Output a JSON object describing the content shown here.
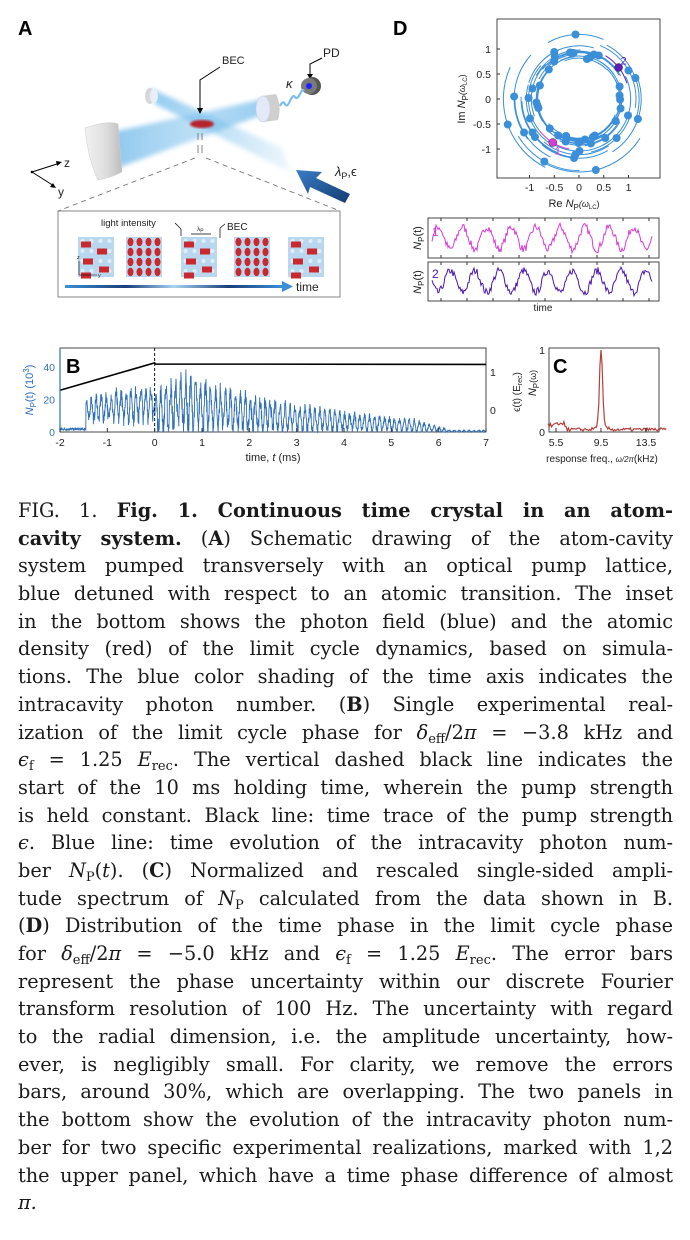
{
  "figure": {
    "panel_labels": {
      "a": "A",
      "b": "B",
      "c": "C",
      "d": "D"
    },
    "panel_a": {
      "bec_label": "BEC",
      "pd_label": "PD",
      "kappa_label": "κ",
      "pump_label": "λ",
      "pump_label_sub": "P",
      "pump_label_suffix": ",ϵ",
      "axis_z": "z",
      "axis_y": "y",
      "inset": {
        "light_intensity_label": "light intensity",
        "lambda_label": "λ",
        "lambda_sub": "P",
        "bec_label": "BEC",
        "axis_z": "z",
        "axis_y": "y",
        "time_label": "time"
      },
      "colors": {
        "beam": "#6fb6e6",
        "bec": "#c0202a",
        "pump_arrow": "#1f5a99",
        "pd_dot": "#2020ff"
      }
    }
  },
  "chart_data": [
    {
      "panel": "B",
      "type": "line",
      "xlabel": "time, t (ms)",
      "ylabel_left": "N_P(t) (10^3)",
      "ylabel_right": "ϵ(t) (E_rec)",
      "xlim": [
        -2,
        7
      ],
      "ylim_left": [
        0,
        50
      ],
      "xticks": [
        "-2",
        "-1",
        "0",
        "1",
        "2",
        "3",
        "4",
        "5",
        "6",
        "7"
      ],
      "yticks_left": [
        "0",
        "20",
        "40"
      ],
      "yticks_right": [
        "0",
        "1"
      ],
      "dashed_vline_x": 0,
      "series": [
        {
          "color": "#2f6fb8",
          "axis": "left",
          "description_points": [
            [
              -2,
              1
            ],
            [
              -1.5,
              1
            ],
            [
              -1.3,
              18
            ],
            [
              -1,
              22
            ],
            [
              0,
              30
            ],
            [
              0.5,
              40
            ],
            [
              1,
              36
            ],
            [
              2,
              28
            ],
            [
              3,
              24
            ],
            [
              4,
              18
            ],
            [
              5,
              12
            ],
            [
              6,
              8
            ],
            [
              7,
              2
            ]
          ]
        },
        {
          "color": "#000000",
          "axis": "right",
          "points": [
            [
              -2,
              0.52
            ],
            [
              0,
              1.24
            ],
            [
              0.01,
              1.21
            ],
            [
              7,
              1.2
            ]
          ]
        }
      ],
      "label_parts": {
        "left_main": "N",
        "left_sub": "P",
        "left_rest": "(t)  (10",
        "left_sup": "3",
        "left_end": ")",
        "right_main": "ϵ(t) (E",
        "right_sub": "rec",
        "right_end": ")",
        "x_main": "time, ",
        "x_it": "t",
        "x_end": " (ms)"
      }
    },
    {
      "panel": "C",
      "type": "line",
      "xlabel": "response freq., ω/2π (kHz)",
      "ylabel": "N_P(ω)",
      "xlim": [
        4.5,
        15
      ],
      "ylim": [
        0,
        1
      ],
      "xticks": [
        "5.5",
        "9.5",
        "13.5"
      ],
      "yticks": [
        "0",
        "1"
      ],
      "peak": {
        "x": 9.5,
        "y": 1.0
      },
      "color": "#b5403a",
      "label_parts": {
        "x_main": "response freq., ",
        "x_om": "ω/2π",
        "x_end": "(kHz)",
        "y_main": "N",
        "y_sub": "P",
        "y_end": "(ω)"
      }
    },
    {
      "panel": "D",
      "type": "scatter",
      "xlabel": "Re N_P(ω_LC)",
      "ylabel": "Im N_P(ω_LC)",
      "xlim": [
        -1.6,
        1.6
      ],
      "ylim": [
        -1.55,
        1.55
      ],
      "xticks": [
        "-1",
        "-0.5",
        "0",
        "0.5",
        "1"
      ],
      "yticks": [
        "1",
        "0.5",
        "0",
        "-0.5",
        "-1"
      ],
      "color": "#3a8fd8",
      "points": [
        [
          -0.07,
          1.29
        ],
        [
          -0.5,
          0.94
        ],
        [
          -0.49,
          0.85
        ],
        [
          -0.5,
          0.75
        ],
        [
          -0.18,
          0.93
        ],
        [
          -0.11,
          0.92
        ],
        [
          0.16,
          0.8
        ],
        [
          0.22,
          0.83
        ],
        [
          0.3,
          0.89
        ],
        [
          0.4,
          0.87
        ],
        [
          -0.61,
          0.59
        ],
        [
          1.0,
          0.57
        ],
        [
          1.14,
          0.42
        ],
        [
          -0.79,
          0.27
        ],
        [
          -0.94,
          0.21
        ],
        [
          -1.31,
          0.05
        ],
        [
          -1.02,
          0.02
        ],
        [
          -0.86,
          -0.07
        ],
        [
          -0.84,
          -0.13
        ],
        [
          -0.82,
          -0.18
        ],
        [
          0.82,
          0.25
        ],
        [
          0.82,
          0.07
        ],
        [
          0.83,
          -0.01
        ],
        [
          0.84,
          -0.19
        ],
        [
          0.99,
          -0.33
        ],
        [
          0.74,
          -0.44
        ],
        [
          1.19,
          -0.4
        ],
        [
          -0.99,
          -0.39
        ],
        [
          -1.44,
          -0.51
        ],
        [
          -0.59,
          -0.59
        ],
        [
          -0.94,
          -0.67
        ],
        [
          -1.11,
          -0.67
        ],
        [
          -0.89,
          -0.76
        ],
        [
          -0.42,
          -0.73
        ],
        [
          -0.27,
          -0.85
        ],
        [
          -0.26,
          -0.74
        ],
        [
          -0.01,
          -0.88
        ],
        [
          0.02,
          -0.85
        ],
        [
          0.12,
          -0.81
        ],
        [
          0.28,
          -0.76
        ],
        [
          0.24,
          -0.89
        ],
        [
          0.32,
          -0.73
        ],
        [
          0.53,
          -0.78
        ],
        [
          0.76,
          -0.78
        ],
        [
          0.01,
          -1.04
        ],
        [
          -0.07,
          -1.11
        ],
        [
          -0.1,
          -1.18
        ],
        [
          -0.7,
          -1.25
        ],
        [
          0.34,
          -1.42
        ]
      ],
      "highlighted": [
        {
          "label": "1",
          "point": [
            -0.53,
            -0.87
          ],
          "color": "#d63cd6"
        },
        {
          "label": "2",
          "point": [
            0.8,
            0.63
          ],
          "color": "#5b1fb8"
        }
      ],
      "label_parts": {
        "x_main": "Re ",
        "x_n": "N",
        "x_sub": "P",
        "x_end": "(ω",
        "x_sub2": "LC",
        "x_close": ")",
        "y_main": "Im ",
        "y_n": "N",
        "y_sub": "P",
        "y_end": "(ω",
        "y_sub2": "LC",
        "y_close": ")"
      }
    },
    {
      "panel": "D-traces",
      "type": "line",
      "xlabel": "time",
      "ylabel": "N_P(t)",
      "series": [
        {
          "name": "1",
          "color": "#d63cd6",
          "periods": 9,
          "phase": 0
        },
        {
          "name": "2",
          "color": "#4a14b0",
          "periods": 9,
          "phase": 3.14
        }
      ],
      "label_parts": {
        "y_main": "N",
        "y_sub": "P",
        "y_end": "(t)"
      }
    }
  ],
  "caption": {
    "lines": [
      [
        [
          "FIG. 1. ",
          ""
        ],
        [
          "Fig. 1. Continuous time crystal in an atom-",
          "b"
        ]
      ],
      [
        [
          "cavity system.",
          "b"
        ],
        [
          "  (",
          ""
        ],
        [
          "A",
          "b"
        ],
        [
          ") Schematic drawing of the atom-cavity",
          ""
        ]
      ],
      [
        [
          "system pumped transversely with an optical pump lattice,",
          ""
        ]
      ],
      [
        [
          "blue detuned with respect to an atomic transition. The inset",
          ""
        ]
      ],
      [
        [
          "in the bottom shows the photon field (blue) and the atomic",
          ""
        ]
      ],
      [
        [
          "density (red) of the limit cycle dynamics, based on simula-",
          ""
        ]
      ],
      [
        [
          "tions. The blue color shading of the time axis indicates the",
          ""
        ]
      ],
      [
        [
          "intracavity photon number.  (",
          ""
        ],
        [
          "B",
          "b"
        ],
        [
          ") Single experimental real-",
          ""
        ]
      ],
      [
        [
          "ization of the limit cycle phase for ",
          ""
        ],
        [
          "δ",
          "i"
        ],
        [
          "eff",
          "sub"
        ],
        [
          "/2",
          ""
        ],
        [
          "π",
          "i"
        ],
        [
          " = −3.8 kHz and",
          ""
        ]
      ],
      [
        [
          "ϵ",
          "i"
        ],
        [
          "f",
          "sub"
        ],
        [
          " = 1.25 ",
          ""
        ],
        [
          "E",
          "i"
        ],
        [
          "rec",
          "sub"
        ],
        [
          ". The vertical dashed black line indicates the",
          ""
        ]
      ],
      [
        [
          "start of the 10 ms holding time, wherein the pump strength",
          ""
        ]
      ],
      [
        [
          "is held constant. Black line: time trace of the pump strength",
          ""
        ]
      ],
      [
        [
          "ϵ",
          "i"
        ],
        [
          ". Blue line: time evolution of the intracavity photon num-",
          ""
        ]
      ],
      [
        [
          "ber ",
          ""
        ],
        [
          "N",
          "i"
        ],
        [
          "P",
          "sub"
        ],
        [
          "(",
          ""
        ],
        [
          "t",
          "i"
        ],
        [
          ").  (",
          ""
        ],
        [
          "C",
          "b"
        ],
        [
          ") Normalized and rescaled single-sided ampli-",
          ""
        ]
      ],
      [
        [
          "tude spectrum of ",
          ""
        ],
        [
          "N",
          "i"
        ],
        [
          "P",
          "sub"
        ],
        [
          " calculated from the data shown in B.",
          ""
        ]
      ],
      [
        [
          "(",
          ""
        ],
        [
          "D",
          "b"
        ],
        [
          ") Distribution of the time phase in the limit cycle phase",
          ""
        ]
      ],
      [
        [
          "for ",
          ""
        ],
        [
          "δ",
          "i"
        ],
        [
          "eff",
          "sub"
        ],
        [
          "/2",
          ""
        ],
        [
          "π",
          "i"
        ],
        [
          " = −5.0 kHz and ",
          ""
        ],
        [
          "ϵ",
          "i"
        ],
        [
          "f",
          "sub"
        ],
        [
          " = 1.25 ",
          ""
        ],
        [
          "E",
          "i"
        ],
        [
          "rec",
          "sub"
        ],
        [
          ".  The error bars",
          ""
        ]
      ],
      [
        [
          "represent the phase uncertainty within our discrete Fourier",
          ""
        ]
      ],
      [
        [
          "transform resolution of 100 Hz. The uncertainty with regard",
          ""
        ]
      ],
      [
        [
          "to the radial dimension, i.e. the amplitude uncertainty, how-",
          ""
        ]
      ],
      [
        [
          "ever, is negligibly small.  For clarity, we remove the errors",
          ""
        ]
      ],
      [
        [
          "bars, around 30%, which are overlapping. The two panels in",
          ""
        ]
      ],
      [
        [
          "the bottom show the evolution of the intracavity photon num-",
          ""
        ]
      ],
      [
        [
          "ber for two specific experimental realizations, marked with 1,2",
          ""
        ]
      ],
      [
        [
          "the upper panel, which have a time phase difference of almost",
          ""
        ]
      ],
      [
        [
          "π.",
          "i"
        ]
      ]
    ]
  }
}
